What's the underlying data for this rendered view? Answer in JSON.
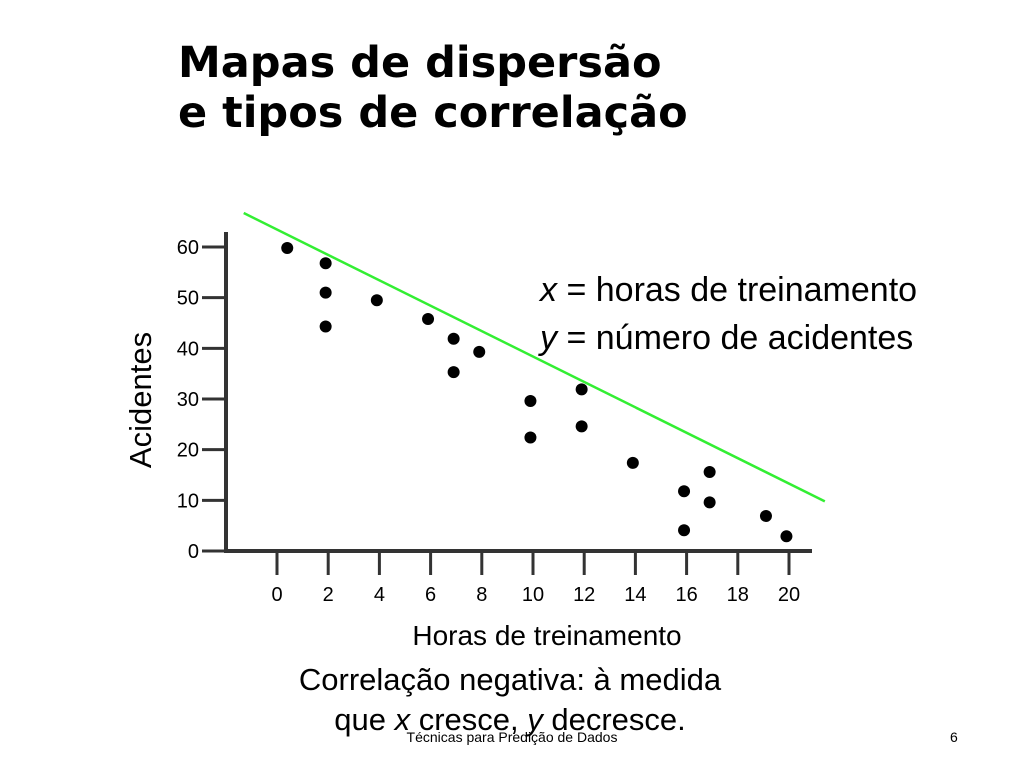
{
  "slide": {
    "title_line1": "Mapas de dispersão",
    "title_line2": "e tipos de correlação",
    "legend": {
      "x_var": "x",
      "x_desc": " = horas de treinamento",
      "y_var": "y",
      "y_desc": " = número de acidentes"
    },
    "caption": {
      "line1": "Correlação negativa: à medida",
      "line2_a": "que ",
      "line2_x": "x",
      "line2_b": " cresce, ",
      "line2_y": "y",
      "line2_c": " decresce."
    },
    "footer_text": "Técnicas para Predição de Dados",
    "page_number": "6"
  },
  "chart_data": {
    "type": "scatter",
    "xlabel": "Horas de treinamento",
    "ylabel": "Acidentes",
    "xticks": [
      0,
      2,
      4,
      6,
      8,
      10,
      12,
      14,
      16,
      18,
      20
    ],
    "yticks": [
      0,
      10,
      20,
      30,
      40,
      50,
      60
    ],
    "xlim": [
      -2,
      21
    ],
    "ylim": [
      0,
      61
    ],
    "grid": false,
    "colors": {
      "points": "#000000",
      "trend_line": "#33ee33"
    },
    "points": [
      {
        "x": 0.4,
        "y": 59.8
      },
      {
        "x": 1.9,
        "y": 56.8
      },
      {
        "x": 1.9,
        "y": 51.0
      },
      {
        "x": 1.9,
        "y": 44.3
      },
      {
        "x": 3.9,
        "y": 49.5
      },
      {
        "x": 5.9,
        "y": 45.8
      },
      {
        "x": 6.9,
        "y": 41.9
      },
      {
        "x": 6.9,
        "y": 35.3
      },
      {
        "x": 7.9,
        "y": 39.3
      },
      {
        "x": 9.9,
        "y": 29.6
      },
      {
        "x": 9.9,
        "y": 22.4
      },
      {
        "x": 11.9,
        "y": 31.9
      },
      {
        "x": 11.9,
        "y": 24.6
      },
      {
        "x": 13.9,
        "y": 17.4
      },
      {
        "x": 15.9,
        "y": 11.8
      },
      {
        "x": 15.9,
        "y": 4.1
      },
      {
        "x": 16.9,
        "y": 15.6
      },
      {
        "x": 16.9,
        "y": 9.6
      },
      {
        "x": 19.1,
        "y": 6.9
      },
      {
        "x": 19.9,
        "y": 2.9
      }
    ],
    "trend_line": {
      "x1": -1.3,
      "y1": 66.7,
      "x2": 21.4,
      "y2": 9.8
    }
  }
}
